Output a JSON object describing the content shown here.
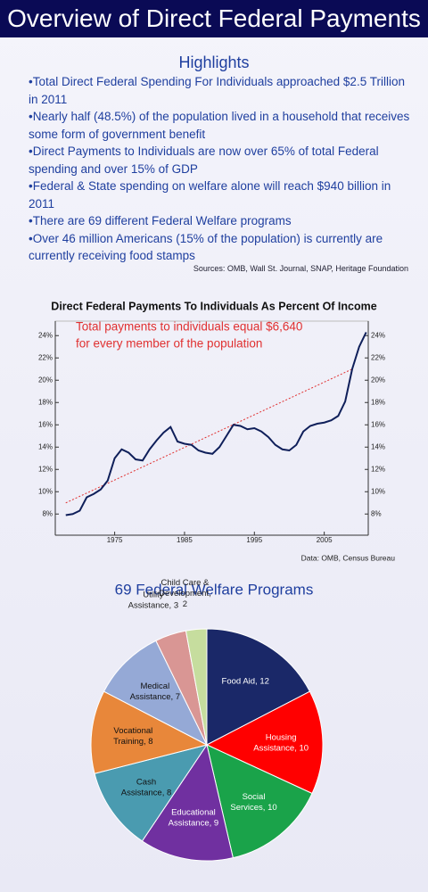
{
  "header": {
    "title": "Overview of Direct Federal Payments"
  },
  "highlights": {
    "title": "Highlights",
    "bullets": [
      "•Total Direct Federal Spending For Individuals approached $2.5 Trillion in 2011",
      "•Nearly half (48.5%) of the population lived in a household that receives some form of government benefit",
      "•Direct Payments to Individuals are now over 65% of total Federal spending and over 15% of GDP",
      "•Federal & State spending on welfare alone will reach $940 billion in 2011",
      "•There are 69 different Federal Welfare programs",
      "•Over 46 million Americans (15% of the population) is currently are currently receiving food stamps"
    ],
    "sources": "Sources: OMB, Wall St. Journal, SNAP, Heritage Foundation"
  },
  "chart_data": [
    {
      "type": "line",
      "title": "Direct Federal Payments To Individuals As Percent Of Income",
      "annotation": [
        "Total payments to individuals equal $6,640",
        "for every member of the population"
      ],
      "annotation_color": "#e03030",
      "source": "Data: OMB, Census Bureau",
      "x": [
        1968,
        1969,
        1970,
        1971,
        1972,
        1973,
        1974,
        1975,
        1976,
        1977,
        1978,
        1979,
        1980,
        1981,
        1982,
        1983,
        1984,
        1985,
        1986,
        1987,
        1988,
        1989,
        1990,
        1991,
        1992,
        1993,
        1994,
        1995,
        1996,
        1997,
        1998,
        1999,
        2000,
        2001,
        2002,
        2003,
        2004,
        2005,
        2006,
        2007,
        2008,
        2009,
        2010,
        2011
      ],
      "series": [
        {
          "color": "#0f1f5a",
          "values": [
            7.9,
            8.0,
            8.3,
            9.5,
            9.8,
            10.2,
            11.0,
            13.0,
            13.8,
            13.5,
            12.9,
            12.8,
            13.8,
            14.6,
            15.3,
            15.8,
            14.5,
            14.3,
            14.2,
            13.7,
            13.5,
            13.4,
            14.0,
            15.0,
            16.0,
            15.9,
            15.6,
            15.7,
            15.4,
            14.9,
            14.2,
            13.8,
            13.7,
            14.2,
            15.4,
            15.9,
            16.1,
            16.2,
            16.4,
            16.8,
            18.1,
            21.0,
            23.0,
            24.3
          ]
        }
      ],
      "trend": {
        "x": [
          1968,
          2009
        ],
        "values": [
          9.0,
          21.0
        ],
        "color": "#e03030"
      },
      "xlim": [
        1966.5,
        2011.3
      ],
      "xticks": [
        1975,
        1985,
        1995,
        2005
      ],
      "ylim": [
        6.1,
        25.3
      ],
      "yticks": [
        {
          "value": 8,
          "label": "8%"
        },
        {
          "value": 10,
          "label": "10%"
        },
        {
          "value": 12,
          "label": "12%"
        },
        {
          "value": 14,
          "label": "14%"
        },
        {
          "value": 16,
          "label": "16%"
        },
        {
          "value": 18,
          "label": "18%"
        },
        {
          "value": 20,
          "label": "20%"
        },
        {
          "value": 22,
          "label": "22%"
        },
        {
          "value": 24,
          "label": "24%"
        }
      ],
      "y2lim": [
        6.1,
        25.3
      ],
      "y2ticks": [
        {
          "value": 8,
          "label": "8%"
        },
        {
          "value": 10,
          "label": "10%"
        },
        {
          "value": 12,
          "label": "12%"
        },
        {
          "value": 14,
          "label": "14%"
        },
        {
          "value": 16,
          "label": "16%"
        },
        {
          "value": 18,
          "label": "18%"
        },
        {
          "value": 20,
          "label": "20%"
        },
        {
          "value": 22,
          "label": "22%"
        },
        {
          "value": 24,
          "label": "24%"
        }
      ],
      "grid": false
    },
    {
      "type": "pie",
      "title": "69 Federal Welfare Programs",
      "values": [
        12,
        10,
        10,
        9,
        8,
        8,
        7,
        3,
        2
      ],
      "labels": [
        [
          "Food Aid, 12"
        ],
        [
          "Housing",
          "Assistance, 10"
        ],
        [
          "Social",
          "Services, 10"
        ],
        [
          "Educational",
          "Assistance, 9"
        ],
        [
          "Cash",
          "Assistance, 8"
        ],
        [
          "Vocational",
          "Training, 8"
        ],
        [
          "Medical",
          "Assistance, 7"
        ],
        [
          "Utility",
          "Assistance, 3"
        ],
        [
          "Child Care &",
          "Development,",
          "2"
        ]
      ],
      "colors": [
        "#1a2868",
        "#ff0000",
        "#1aa34a",
        "#7030a0",
        "#4a9bb0",
        "#e8873a",
        "#95a9d6",
        "#d99694",
        "#c6dd9e"
      ]
    }
  ]
}
